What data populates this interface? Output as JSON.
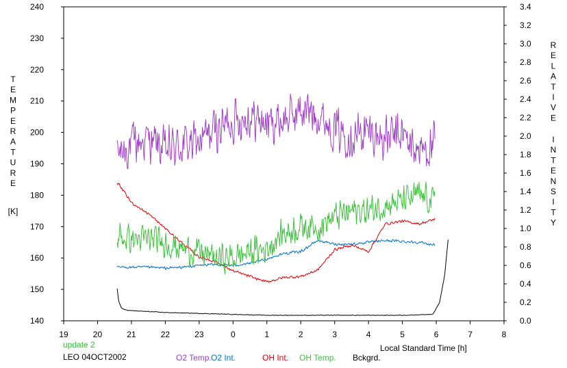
{
  "chart_data": {
    "type": "line",
    "xlabel": "Local Standard Time [h]",
    "x_ticks": [
      "19",
      "20",
      "21",
      "22",
      "23",
      "0",
      "1",
      "2",
      "3",
      "4",
      "5",
      "6",
      "7",
      "8"
    ],
    "xlim": [
      19,
      32
    ],
    "left_axis": {
      "label_letters": [
        "T",
        "E",
        "M",
        "P",
        "E",
        "R",
        "A",
        "T",
        "U",
        "R",
        "E"
      ],
      "unit": "[K]",
      "ylim": [
        140,
        240
      ],
      "ticks": [
        "140",
        "150",
        "160",
        "170",
        "180",
        "190",
        "200",
        "210",
        "220",
        "230",
        "240"
      ]
    },
    "right_axis": {
      "label_word1": [
        "R",
        "E",
        "L",
        "A",
        "T",
        "I",
        "V",
        "E"
      ],
      "label_word2": [
        "I",
        "N",
        "T",
        "E",
        "N",
        "S",
        "I",
        "T",
        "Y"
      ],
      "ylim": [
        0.0,
        3.4
      ],
      "ticks": [
        "0.0",
        "0.2",
        "0.4",
        "0.6",
        "0.8",
        "1.0",
        "1.2",
        "1.4",
        "1.6",
        "1.8",
        "2.0",
        "2.2",
        "2.4",
        "2.6",
        "2.8",
        "3.0",
        "3.2",
        "3.4"
      ]
    },
    "grid": false,
    "legend_placement": "bottom",
    "series": [
      {
        "name": "O2 Temp.",
        "axis": "left",
        "color": "#a040c8",
        "noise": 8.5,
        "x": [
          20.58,
          21,
          21.5,
          22,
          22.5,
          23,
          23.5,
          24,
          24.5,
          25,
          25.5,
          26,
          26.5,
          27,
          27.5,
          28,
          28.5,
          29,
          29.5,
          29.96
        ],
        "y": [
          193,
          196,
          198,
          194,
          196,
          197,
          201,
          204,
          205,
          203,
          204,
          207,
          206,
          201,
          199,
          200,
          198,
          199,
          194,
          196
        ]
      },
      {
        "name": "O2 Int.",
        "axis": "right",
        "color": "#0070d0",
        "noise": 0.018,
        "x": [
          20.58,
          21,
          21.5,
          22,
          22.5,
          23,
          23.5,
          24,
          24.5,
          25,
          25.5,
          26,
          26.5,
          27,
          27.5,
          28,
          28.5,
          29,
          29.5,
          29.96
        ],
        "y": [
          0.58,
          0.58,
          0.58,
          0.57,
          0.58,
          0.6,
          0.61,
          0.6,
          0.62,
          0.67,
          0.73,
          0.75,
          0.87,
          0.83,
          0.83,
          0.85,
          0.87,
          0.86,
          0.85,
          0.82
        ]
      },
      {
        "name": "OH Int.",
        "axis": "right",
        "color": "#e00000",
        "noise": 0.018,
        "x": [
          20.58,
          21,
          21.5,
          22,
          22.5,
          23,
          23.5,
          24,
          24.5,
          25,
          25.5,
          26,
          26.5,
          27,
          27.5,
          28,
          28.5,
          29,
          29.5,
          29.96
        ],
        "y": [
          1.5,
          1.28,
          1.16,
          1.0,
          0.84,
          0.69,
          0.64,
          0.54,
          0.48,
          0.42,
          0.47,
          0.48,
          0.55,
          0.77,
          0.82,
          0.75,
          1.05,
          1.08,
          1.05,
          1.1
        ]
      },
      {
        "name": "OH Temp.",
        "axis": "left",
        "color": "#40c040",
        "noise": 5.5,
        "x": [
          20.58,
          21,
          21.5,
          22,
          22.5,
          23,
          23.5,
          24,
          24.5,
          25,
          25.5,
          26,
          26.5,
          27,
          27.5,
          28,
          28.5,
          29,
          29.5,
          29.96
        ],
        "y": [
          167,
          166,
          166,
          165,
          163,
          162,
          160,
          160,
          162,
          163,
          168,
          170,
          170,
          173,
          175,
          175,
          177,
          178,
          180,
          178
        ]
      },
      {
        "name": "Bckgrd.",
        "axis": "right",
        "color": "#000000",
        "noise": 0.004,
        "x": [
          20.58,
          20.62,
          20.7,
          20.8,
          21,
          21.5,
          22,
          23,
          24,
          25,
          26,
          27,
          28,
          29,
          29.9,
          30.1,
          30.25,
          30.35
        ],
        "y": [
          0.35,
          0.22,
          0.14,
          0.12,
          0.11,
          0.1,
          0.09,
          0.08,
          0.07,
          0.06,
          0.06,
          0.06,
          0.06,
          0.06,
          0.07,
          0.2,
          0.5,
          0.88
        ]
      }
    ],
    "annotations": [
      "update 2",
      "LEO 04OCT2002"
    ]
  },
  "footer": {
    "update_label": "update 2",
    "station_label": "LEO 04OCT2002"
  },
  "colors": {
    "update_label": "#30c030"
  }
}
